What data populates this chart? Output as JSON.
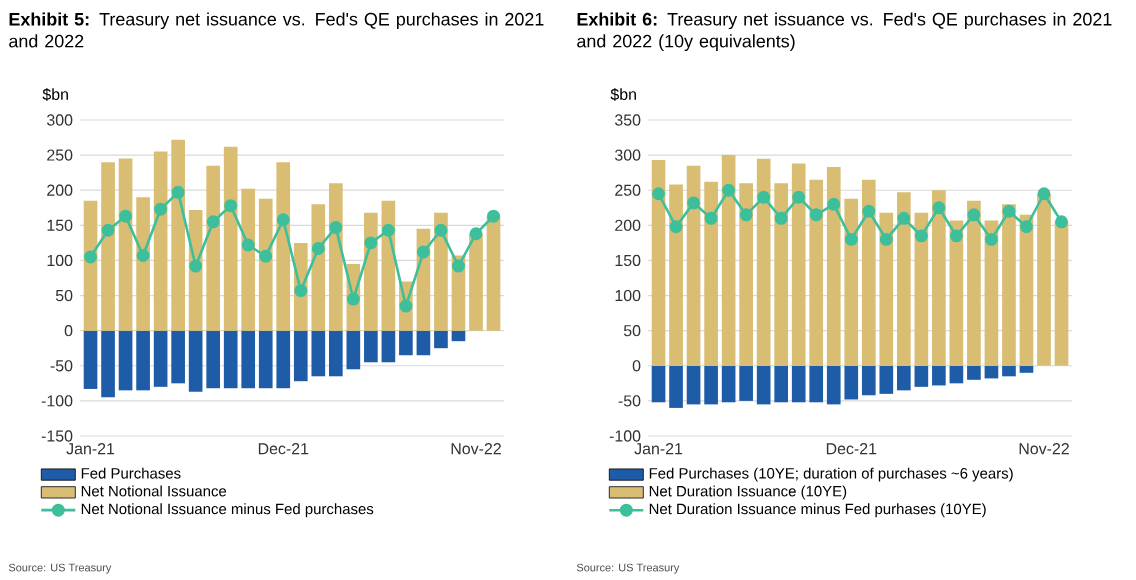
{
  "chart_data": [
    {
      "type": "bar",
      "title": "**Exhibit 5:** Treasury net issuance vs. Fed's QE purchases in 2021 and 2022",
      "ylabel": "$bn",
      "categories": [
        "Jan-21",
        null,
        null,
        null,
        null,
        null,
        null,
        null,
        null,
        null,
        null,
        "Dec-21",
        null,
        null,
        null,
        null,
        null,
        null,
        null,
        null,
        null,
        null,
        "Nov-22",
        null
      ],
      "series": [
        {
          "name": "Fed Purchases",
          "color": "#1f5ca8",
          "values": [
            -83,
            -95,
            -85,
            -85,
            -80,
            -75,
            -87,
            -82,
            -82,
            -82,
            -82,
            -82,
            -72,
            -65,
            -65,
            -55,
            -45,
            -45,
            -35,
            -35,
            -25,
            -15,
            null,
            null
          ]
        },
        {
          "name": "Net Notional Issuance",
          "color": "#d8bd72",
          "values": [
            185,
            240,
            245,
            190,
            255,
            272,
            172,
            235,
            262,
            202,
            188,
            240,
            125,
            180,
            210,
            95,
            168,
            185,
            70,
            145,
            168,
            107,
            138,
            163
          ]
        },
        {
          "name": "Net Notional Issuance minus Fed purchases",
          "color": "#3dbf9c",
          "type": "line",
          "values": [
            105,
            143,
            163,
            107,
            173,
            197,
            92,
            155,
            178,
            122,
            106,
            158,
            57,
            117,
            147,
            45,
            125,
            143,
            35,
            112,
            143,
            92,
            138,
            163
          ]
        }
      ],
      "ylim": [
        -150,
        300
      ],
      "yticks": [
        -150,
        -100,
        -50,
        0,
        50,
        100,
        150,
        200,
        250,
        300
      ],
      "grid": "y",
      "stacked": true,
      "legend": "bottom",
      "marker": "circle",
      "annotations": [
        "Source: US Treasury"
      ]
    },
    {
      "type": "bar",
      "title": "**Exhibit 6:** Treasury net issuance vs. Fed's QE purchases in 2021 and 2022 (10y equivalents)",
      "ylabel": "$bn",
      "categories": [
        "Jan-21",
        null,
        null,
        null,
        null,
        null,
        null,
        null,
        null,
        null,
        null,
        "Dec-21",
        null,
        null,
        null,
        null,
        null,
        null,
        null,
        null,
        null,
        null,
        "Nov-22",
        null
      ],
      "series": [
        {
          "name": "Fed Purchases (10YE; duration of purchases ~6 years)",
          "color": "#1f5ca8",
          "values": [
            -52,
            -60,
            -55,
            -55,
            -52,
            -50,
            -55,
            -52,
            -52,
            -52,
            -55,
            -48,
            -42,
            -40,
            -35,
            -30,
            -28,
            -25,
            -20,
            -18,
            -15,
            -10,
            null,
            null
          ]
        },
        {
          "name": "Net Duration Issuance (10YE)",
          "color": "#d8bd72",
          "values": [
            293,
            258,
            285,
            262,
            300,
            260,
            295,
            260,
            288,
            265,
            283,
            238,
            265,
            218,
            247,
            218,
            250,
            207,
            235,
            207,
            230,
            215,
            245,
            205
          ]
        },
        {
          "name": "Net Duration Issuance minus Fed purhases (10YE)",
          "color": "#3dbf9c",
          "type": "line",
          "values": [
            245,
            198,
            232,
            210,
            250,
            215,
            240,
            210,
            240,
            215,
            230,
            180,
            220,
            180,
            210,
            185,
            225,
            185,
            215,
            180,
            220,
            198,
            245,
            205
          ]
        }
      ],
      "ylim": [
        -100,
        350
      ],
      "yticks": [
        -100,
        -50,
        0,
        50,
        100,
        150,
        200,
        250,
        300,
        350
      ],
      "grid": "y",
      "stacked": true,
      "legend": "bottom",
      "marker": "circle",
      "annotations": [
        "Source: US Treasury"
      ]
    }
  ]
}
